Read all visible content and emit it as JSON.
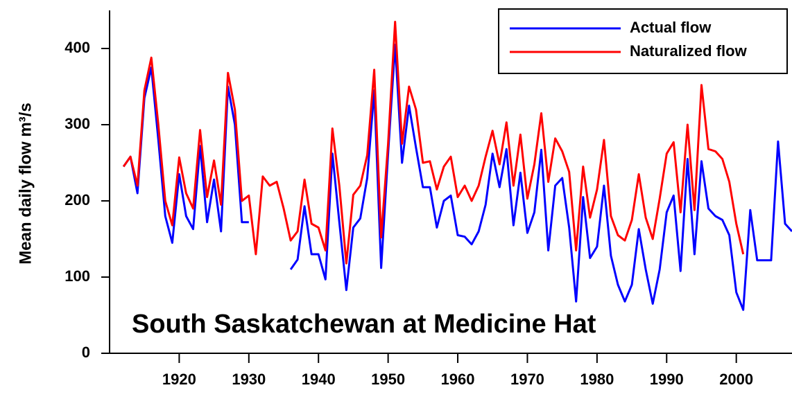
{
  "chart_data": {
    "type": "line",
    "annotation": "South Saskatchewan at Medicine Hat",
    "y_label": "Mean daily flow m³/s",
    "x": [
      1912,
      1913,
      1914,
      1915,
      1916,
      1917,
      1918,
      1919,
      1920,
      1921,
      1922,
      1923,
      1924,
      1925,
      1926,
      1927,
      1928,
      1929,
      1930,
      1931,
      1932,
      1933,
      1934,
      1935,
      1936,
      1937,
      1938,
      1939,
      1940,
      1941,
      1942,
      1943,
      1944,
      1945,
      1946,
      1947,
      1948,
      1949,
      1950,
      1951,
      1952,
      1953,
      1954,
      1955,
      1956,
      1957,
      1958,
      1959,
      1960,
      1961,
      1962,
      1963,
      1964,
      1965,
      1966,
      1967,
      1968,
      1969,
      1970,
      1971,
      1972,
      1973,
      1974,
      1975,
      1976,
      1977,
      1978,
      1979,
      1980,
      1981,
      1982,
      1983,
      1984,
      1985,
      1986,
      1987,
      1988,
      1989,
      1990,
      1991,
      1992,
      1993,
      1994,
      1995,
      1996,
      1997,
      1998,
      1999,
      2000,
      2001,
      2002,
      2003,
      2004,
      2005,
      2006,
      2007,
      2008
    ],
    "series": [
      {
        "name": "Actual flow",
        "color": "#0000ff",
        "values": [
          245,
          258,
          210,
          335,
          375,
          280,
          180,
          145,
          235,
          180,
          163,
          272,
          172,
          228,
          160,
          350,
          300,
          172,
          172,
          null,
          null,
          null,
          null,
          null,
          110,
          123,
          193,
          130,
          130,
          97,
          262,
          172,
          83,
          165,
          177,
          230,
          345,
          112,
          262,
          405,
          250,
          325,
          270,
          218,
          218,
          165,
          200,
          207,
          155,
          153,
          143,
          160,
          195,
          262,
          218,
          268,
          168,
          237,
          158,
          185,
          267,
          135,
          220,
          230,
          165,
          68,
          205,
          125,
          140,
          220,
          128,
          90,
          68,
          90,
          163,
          110,
          65,
          110,
          185,
          207,
          108,
          255,
          130,
          252,
          190,
          180,
          175,
          155,
          80,
          57,
          188,
          122,
          122,
          122,
          278,
          170,
          160
        ]
      },
      {
        "name": "Naturalized flow",
        "color": "#ff0000",
        "values": [
          245,
          258,
          220,
          345,
          388,
          300,
          200,
          168,
          257,
          210,
          190,
          293,
          205,
          253,
          195,
          368,
          320,
          200,
          207,
          130,
          232,
          220,
          225,
          190,
          148,
          160,
          228,
          170,
          165,
          135,
          295,
          220,
          118,
          208,
          220,
          260,
          372,
          152,
          275,
          435,
          275,
          350,
          320,
          250,
          252,
          215,
          245,
          258,
          205,
          220,
          200,
          220,
          258,
          292,
          248,
          303,
          220,
          287,
          203,
          248,
          315,
          225,
          282,
          265,
          238,
          135,
          245,
          178,
          215,
          280,
          180,
          155,
          148,
          175,
          235,
          178,
          150,
          203,
          262,
          277,
          185,
          300,
          188,
          352,
          268,
          265,
          255,
          225,
          170,
          130,
          null,
          null,
          null,
          null,
          null,
          null,
          null
        ]
      }
    ],
    "xlim": [
      1910,
      2008
    ],
    "xticks": [
      1920,
      1930,
      1940,
      1950,
      1960,
      1970,
      1980,
      1990,
      2000
    ],
    "ylim": [
      0,
      450
    ],
    "yticks": [
      0,
      100,
      200,
      300,
      400
    ],
    "legend": "top-right"
  }
}
